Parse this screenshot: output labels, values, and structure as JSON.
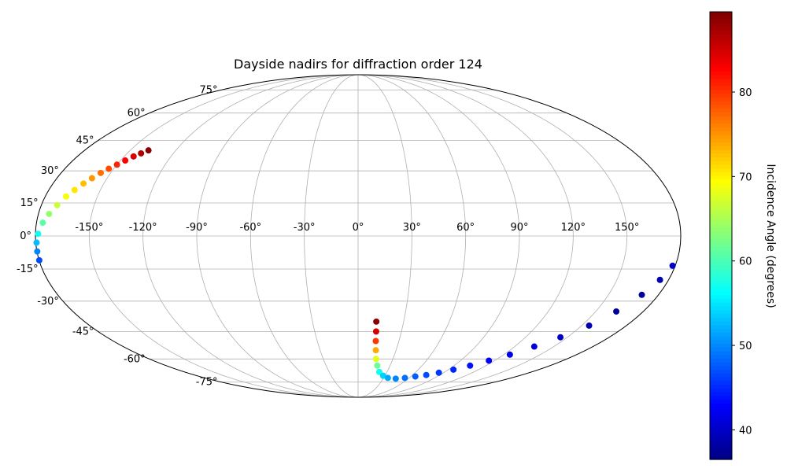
{
  "chart_data": {
    "type": "scatter",
    "title": "Dayside nadirs for diffraction order 124",
    "projection": "mollweide",
    "grid": true,
    "longitude_ticks": [
      -150,
      -120,
      -90,
      -60,
      -30,
      0,
      30,
      60,
      90,
      120,
      150
    ],
    "latitude_ticks": [
      -75,
      -60,
      -45,
      -30,
      -15,
      0,
      15,
      30,
      45,
      60,
      75
    ],
    "longitude_tick_labels": [
      "-150°",
      "-120°",
      "-90°",
      "-60°",
      "-30°",
      "0°",
      "30°",
      "60°",
      "90°",
      "120°",
      "150°"
    ],
    "latitude_tick_labels": [
      "-75°",
      "-60°",
      "-45°",
      "-30°",
      "-15°",
      "0°",
      "15°",
      "30°",
      "45°",
      "60°",
      "75°"
    ],
    "colorbar": {
      "label": "Incidence Angle (degrees)",
      "colormap": "jet",
      "range": [
        36.5,
        89.5
      ],
      "ticks": [
        40,
        50,
        60,
        70,
        80
      ],
      "tick_labels": [
        "40",
        "50",
        "60",
        "70",
        "80"
      ]
    },
    "series": [
      {
        "points": [
          {
            "lon": -138,
            "lat": 40,
            "incidence": 89
          },
          {
            "lon": -141,
            "lat": 38.5,
            "incidence": 87
          },
          {
            "lon": -144,
            "lat": 37,
            "incidence": 85
          },
          {
            "lon": -147,
            "lat": 35,
            "incidence": 83
          },
          {
            "lon": -150,
            "lat": 33,
            "incidence": 81
          },
          {
            "lon": -153,
            "lat": 31,
            "incidence": 79
          },
          {
            "lon": -156,
            "lat": 29,
            "incidence": 77
          },
          {
            "lon": -159,
            "lat": 26.5,
            "incidence": 75
          },
          {
            "lon": -162,
            "lat": 24,
            "incidence": 73
          },
          {
            "lon": -165,
            "lat": 21,
            "incidence": 71
          },
          {
            "lon": -168,
            "lat": 18,
            "incidence": 69
          },
          {
            "lon": -171,
            "lat": 14,
            "incidence": 67
          },
          {
            "lon": -174,
            "lat": 10,
            "incidence": 64
          },
          {
            "lon": -176.5,
            "lat": 6,
            "incidence": 61
          },
          {
            "lon": -178.5,
            "lat": 1,
            "incidence": 57
          },
          {
            "lon": -179.5,
            "lat": -3,
            "incidence": 53
          },
          {
            "lon": -179.8,
            "lat": -7,
            "incidence": 50
          },
          {
            "lon": -179.9,
            "lat": -11,
            "incidence": 47
          },
          {
            "lon": 12,
            "lat": -40,
            "incidence": 89
          },
          {
            "lon": 12.5,
            "lat": -45,
            "incidence": 85
          },
          {
            "lon": 13,
            "lat": -50,
            "incidence": 80
          },
          {
            "lon": 14,
            "lat": -55,
            "incidence": 74
          },
          {
            "lon": 15.5,
            "lat": -60,
            "incidence": 68
          },
          {
            "lon": 18,
            "lat": -64,
            "incidence": 62
          },
          {
            "lon": 22,
            "lat": -68,
            "incidence": 57
          },
          {
            "lon": 28,
            "lat": -70.5,
            "incidence": 54
          },
          {
            "lon": 35,
            "lat": -72,
            "incidence": 52
          },
          {
            "lon": 45,
            "lat": -72.5,
            "incidence": 50
          },
          {
            "lon": 55,
            "lat": -72,
            "incidence": 49
          },
          {
            "lon": 65,
            "lat": -71,
            "incidence": 48
          },
          {
            "lon": 75,
            "lat": -70,
            "incidence": 47
          },
          {
            "lon": 85,
            "lat": -68.5,
            "incidence": 46
          },
          {
            "lon": 95,
            "lat": -66.5,
            "incidence": 45
          },
          {
            "lon": 105,
            "lat": -64,
            "incidence": 44
          },
          {
            "lon": 115,
            "lat": -61,
            "incidence": 43
          },
          {
            "lon": 125,
            "lat": -57.5,
            "incidence": 42
          },
          {
            "lon": 135,
            "lat": -53,
            "incidence": 41
          },
          {
            "lon": 145,
            "lat": -48,
            "incidence": 40
          },
          {
            "lon": 155,
            "lat": -42,
            "incidence": 39
          },
          {
            "lon": 163,
            "lat": -35,
            "incidence": 38
          },
          {
            "lon": 170,
            "lat": -27,
            "incidence": 38
          },
          {
            "lon": 175,
            "lat": -20,
            "incidence": 39
          },
          {
            "lon": 178.5,
            "lat": -13.5,
            "incidence": 40
          }
        ]
      }
    ]
  }
}
